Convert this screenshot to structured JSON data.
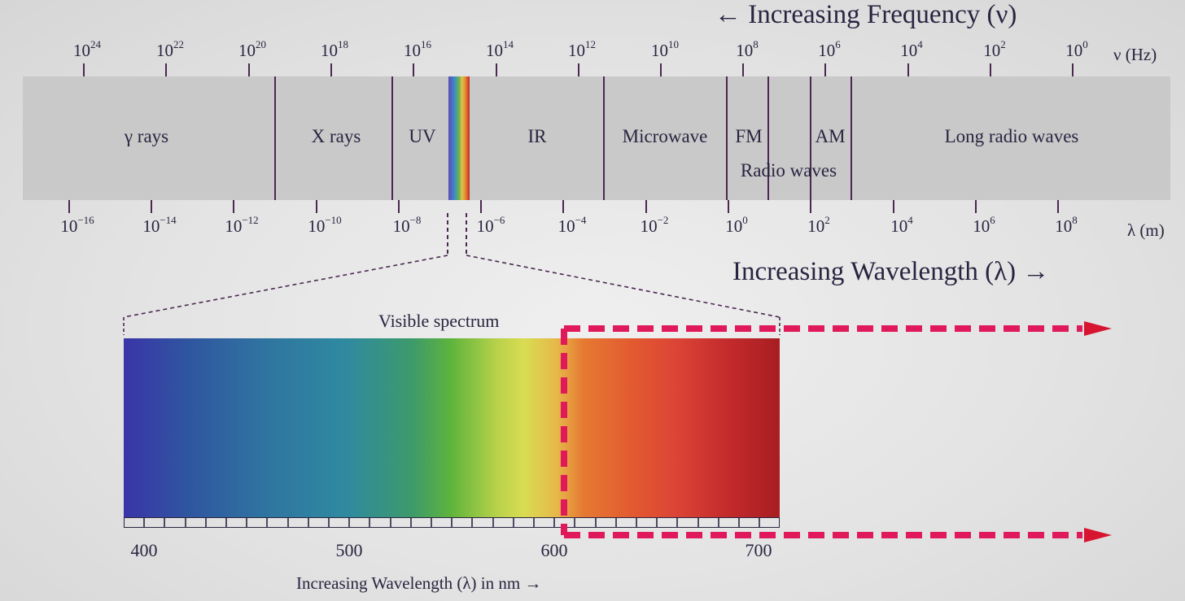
{
  "header": {
    "frequency_title": "← Increasing Frequency (ν)",
    "frequency_unit": "ν (Hz)"
  },
  "frequency_ticks": [
    {
      "base": "10",
      "exp": "24"
    },
    {
      "base": "10",
      "exp": "22"
    },
    {
      "base": "10",
      "exp": "20"
    },
    {
      "base": "10",
      "exp": "18"
    },
    {
      "base": "10",
      "exp": "16"
    },
    {
      "base": "10",
      "exp": "14"
    },
    {
      "base": "10",
      "exp": "12"
    },
    {
      "base": "10",
      "exp": "10"
    },
    {
      "base": "10",
      "exp": "8"
    },
    {
      "base": "10",
      "exp": "6"
    },
    {
      "base": "10",
      "exp": "4"
    },
    {
      "base": "10",
      "exp": "2"
    },
    {
      "base": "10",
      "exp": "0"
    }
  ],
  "wavelength_ticks": [
    {
      "base": "10",
      "exp": "−16"
    },
    {
      "base": "10",
      "exp": "−14"
    },
    {
      "base": "10",
      "exp": "−12"
    },
    {
      "base": "10",
      "exp": "−10"
    },
    {
      "base": "10",
      "exp": "−8"
    },
    {
      "base": "10",
      "exp": "−6"
    },
    {
      "base": "10",
      "exp": "−4"
    },
    {
      "base": "10",
      "exp": "−2"
    },
    {
      "base": "10",
      "exp": "0"
    },
    {
      "base": "10",
      "exp": "2"
    },
    {
      "base": "10",
      "exp": "4"
    },
    {
      "base": "10",
      "exp": "6"
    },
    {
      "base": "10",
      "exp": "8"
    }
  ],
  "wavelength_unit": "λ (m)",
  "regions": {
    "gamma": "γ rays",
    "xray": "X rays",
    "uv": "UV",
    "ir": "IR",
    "microwave": "Microwave",
    "fm": "FM",
    "am": "AM",
    "radio": "Radio waves",
    "long_radio": "Long radio waves"
  },
  "wavelength_title": "Increasing Wavelength (λ) →",
  "visible": {
    "title": "Visible spectrum",
    "scale_labels": [
      "400",
      "500",
      "600",
      "700"
    ],
    "caption": "Increasing Wavelength (λ) in nm →"
  },
  "colors": {
    "ink": "#2a2440",
    "line": "#4a2850",
    "band": "#c9c9c9",
    "highlight_dash": "#e0195a",
    "arrow_head": "#d81530"
  }
}
